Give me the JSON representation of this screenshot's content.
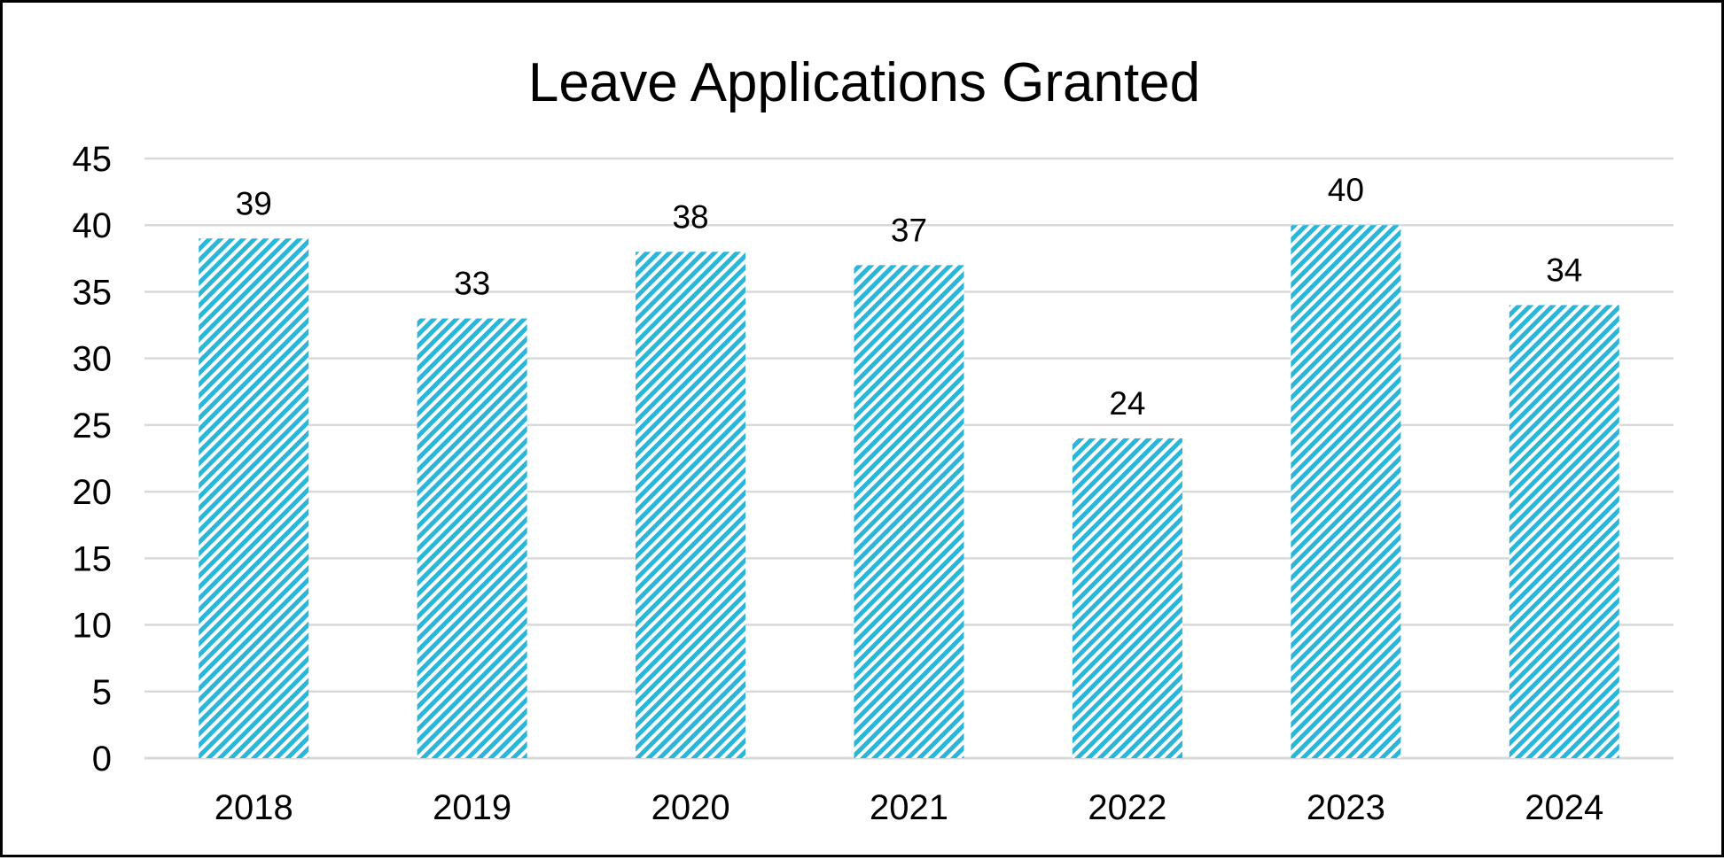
{
  "chart_data": {
    "type": "bar",
    "title": "Leave Applications Granted",
    "xlabel": "",
    "ylabel": "",
    "categories": [
      "2018",
      "2019",
      "2020",
      "2021",
      "2022",
      "2023",
      "2024"
    ],
    "values": [
      39,
      33,
      38,
      37,
      24,
      40,
      34
    ],
    "ylim": [
      0,
      45
    ],
    "yticks": [
      "0",
      "5",
      "10",
      "15",
      "20",
      "25",
      "30",
      "35",
      "40",
      "45"
    ],
    "grid": true,
    "legend": "none",
    "data_labels": true,
    "bar_color": "#29b6d8",
    "bar_fill": "diagonal-stripes"
  }
}
